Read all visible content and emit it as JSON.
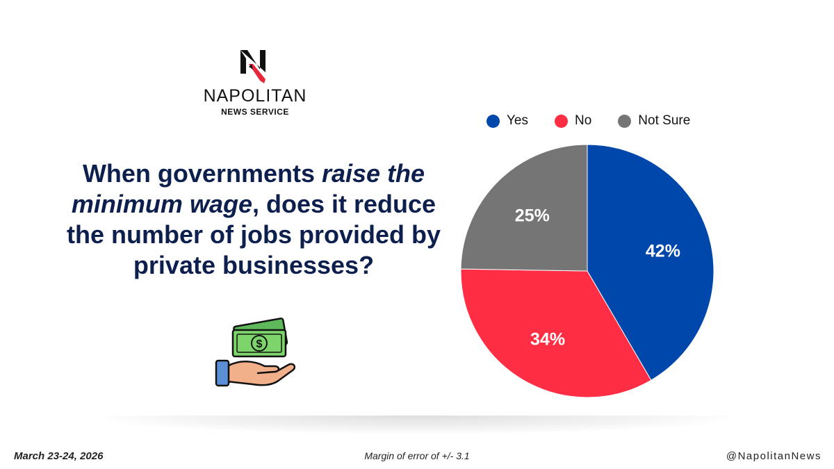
{
  "logo": {
    "name": "NAPOLITAN",
    "subtitle": "NEWS SERVICE",
    "mark_colors": {
      "letter": "#111111",
      "accent": "#e8273c"
    }
  },
  "question": {
    "part1": "When governments ",
    "emphasis": "raise the minimum wage",
    "part2": ", does it reduce the number of jobs provided by private businesses?"
  },
  "icon": {
    "name": "money-in-hand-icon"
  },
  "chart_data": {
    "type": "pie",
    "title": "",
    "legend_placement": "top",
    "slices": [
      {
        "label": "Yes",
        "value": 42,
        "display": "42%",
        "color": "#0047ab"
      },
      {
        "label": "No",
        "value": 34,
        "display": "34%",
        "color": "#ff2e44"
      },
      {
        "label": "Not Sure",
        "value": 25,
        "display": "25%",
        "color": "#757575"
      }
    ]
  },
  "footer": {
    "date": "March 23-24, 2026",
    "margin_of_error": "Margin of error of +/- 3.1",
    "handle": "@NapolitanNews"
  }
}
